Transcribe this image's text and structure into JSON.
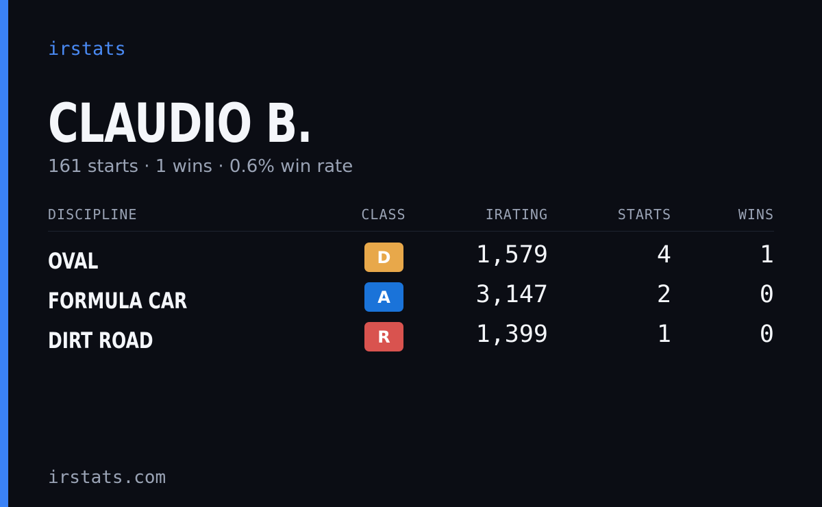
{
  "brand": "irstats",
  "profile": {
    "name": "CLAUDIO B.",
    "summary": "161 starts · 1 wins · 0.6% win rate"
  },
  "table": {
    "headers": [
      "DISCIPLINE",
      "CLASS",
      "IRATING",
      "STARTS",
      "WINS"
    ],
    "rows": [
      {
        "discipline": "OVAL",
        "class": "D",
        "class_color": "#e8a84a",
        "irating": "1,579",
        "starts": "4",
        "wins": "1"
      },
      {
        "discipline": "FORMULA CAR",
        "class": "A",
        "class_color": "#1a73d9",
        "irating": "3,147",
        "starts": "2",
        "wins": "0"
      },
      {
        "discipline": "DIRT ROAD",
        "class": "R",
        "class_color": "#d9534f",
        "irating": "1,399",
        "starts": "1",
        "wins": "0"
      }
    ]
  },
  "footer": "irstats.com"
}
